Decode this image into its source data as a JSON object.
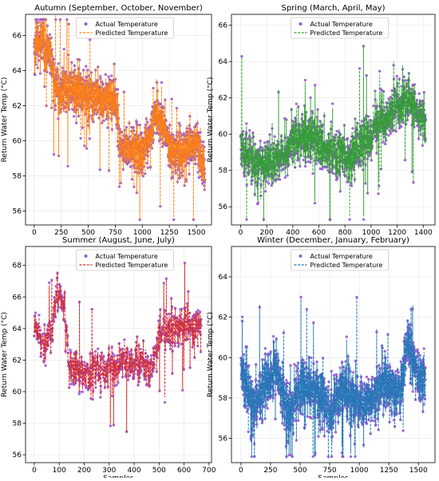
{
  "figure": {
    "y_label": "Return Water Temp (°C)",
    "x_label": "Samples",
    "actual_label": "Actual Temperature",
    "predicted_label": "Predicted Temperature",
    "actual_color": "#9b59d6"
  },
  "chart_data": [
    {
      "type": "scatter",
      "title": "Autumn (September, October, November)",
      "xlabel": "",
      "ylabel": "Return Water Temp (°C)",
      "xlim": [
        -80,
        1640
      ],
      "ylim": [
        55.2,
        67.2
      ],
      "xticks": [
        0,
        250,
        500,
        750,
        1000,
        1250,
        1500
      ],
      "yticks": [
        56,
        58,
        60,
        62,
        64,
        66
      ],
      "n_samples": 1580,
      "predicted_color": "#ff7f0e",
      "grid": true,
      "legend": "top-center",
      "series": [
        {
          "name": "Actual Temperature",
          "style": "points"
        },
        {
          "name": "Predicted Temperature",
          "style": "dashed-line"
        }
      ],
      "trend": [
        [
          0,
          65.2
        ],
        [
          60,
          65.8
        ],
        [
          150,
          64.9
        ],
        [
          200,
          63.0
        ],
        [
          400,
          62.8
        ],
        [
          550,
          62.4
        ],
        [
          750,
          62.3
        ],
        [
          800,
          59.6
        ],
        [
          1000,
          59.4
        ],
        [
          1050,
          59.8
        ],
        [
          1100,
          61.4
        ],
        [
          1200,
          60.9
        ],
        [
          1250,
          59.5
        ],
        [
          1350,
          59.2
        ],
        [
          1450,
          59.8
        ],
        [
          1500,
          60.0
        ],
        [
          1580,
          58.0
        ]
      ],
      "noise": 0.9
    },
    {
      "type": "scatter",
      "title": "Spring (March, April, May)",
      "xlabel": "",
      "ylabel": "Return Water Temp (°C)",
      "xlim": [
        -70,
        1490
      ],
      "ylim": [
        55.0,
        66.6
      ],
      "xticks": [
        0,
        200,
        400,
        600,
        800,
        1000,
        1200,
        1400
      ],
      "yticks": [
        56,
        58,
        60,
        62,
        64,
        66
      ],
      "n_samples": 1420,
      "predicted_color": "#2ca02c",
      "grid": true,
      "legend": "top-center",
      "series": [
        {
          "name": "Actual Temperature",
          "style": "points"
        },
        {
          "name": "Predicted Temperature",
          "style": "dashed-line"
        }
      ],
      "trend": [
        [
          0,
          59.2
        ],
        [
          150,
          58.3
        ],
        [
          300,
          58.6
        ],
        [
          400,
          59.8
        ],
        [
          550,
          59.9
        ],
        [
          700,
          59.0
        ],
        [
          850,
          58.6
        ],
        [
          950,
          59.6
        ],
        [
          1050,
          60.6
        ],
        [
          1150,
          61.0
        ],
        [
          1200,
          61.7
        ],
        [
          1300,
          61.8
        ],
        [
          1420,
          60.6
        ]
      ],
      "noise": 0.9
    },
    {
      "type": "scatter",
      "title": "Summer (August, June, July)",
      "xlabel": "Samples",
      "ylabel": "Return Water Temp (°C)",
      "xlim": [
        -35,
        710
      ],
      "ylim": [
        55.5,
        69.2
      ],
      "xticks": [
        0,
        100,
        200,
        300,
        400,
        500,
        600,
        700
      ],
      "yticks": [
        56,
        58,
        60,
        62,
        64,
        66,
        68
      ],
      "n_samples": 670,
      "predicted_color": "#d62728",
      "grid": true,
      "legend": "top-center",
      "series": [
        {
          "name": "Actual Temperature",
          "style": "points"
        },
        {
          "name": "Predicted Temperature",
          "style": "dashed-line"
        }
      ],
      "trend": [
        [
          0,
          64.3
        ],
        [
          40,
          63.0
        ],
        [
          70,
          63.8
        ],
        [
          90,
          66.4
        ],
        [
          120,
          65.5
        ],
        [
          140,
          61.5
        ],
        [
          200,
          61.2
        ],
        [
          300,
          61.4
        ],
        [
          350,
          61.8
        ],
        [
          420,
          62.0
        ],
        [
          470,
          61.2
        ],
        [
          500,
          63.8
        ],
        [
          600,
          64.2
        ],
        [
          670,
          64.0
        ]
      ],
      "noise": 0.9
    },
    {
      "type": "scatter",
      "title": "Winter (December, January, February)",
      "xlabel": "Samples",
      "ylabel": "Return Water Temp (°C)",
      "xlim": [
        -80,
        1640
      ],
      "ylim": [
        54.8,
        65.5
      ],
      "xticks": [
        0,
        250,
        500,
        750,
        1000,
        1250,
        1500
      ],
      "yticks": [
        56,
        58,
        60,
        62,
        64
      ],
      "n_samples": 1560,
      "predicted_color": "#1f77b4",
      "grid": true,
      "legend": "top-center",
      "series": [
        {
          "name": "Actual Temperature",
          "style": "points"
        },
        {
          "name": "Predicted Temperature",
          "style": "dashed-line"
        }
      ],
      "trend": [
        [
          0,
          59.6
        ],
        [
          100,
          57.5
        ],
        [
          200,
          58.5
        ],
        [
          300,
          59.6
        ],
        [
          400,
          57.0
        ],
        [
          500,
          58.5
        ],
        [
          650,
          58.2
        ],
        [
          750,
          57.2
        ],
        [
          850,
          58.4
        ],
        [
          1000,
          57.7
        ],
        [
          1100,
          57.8
        ],
        [
          1200,
          58.7
        ],
        [
          1300,
          58.2
        ],
        [
          1350,
          58.5
        ],
        [
          1420,
          61.0
        ],
        [
          1470,
          59.4
        ],
        [
          1560,
          58.7
        ]
      ],
      "noise": 0.95
    }
  ]
}
